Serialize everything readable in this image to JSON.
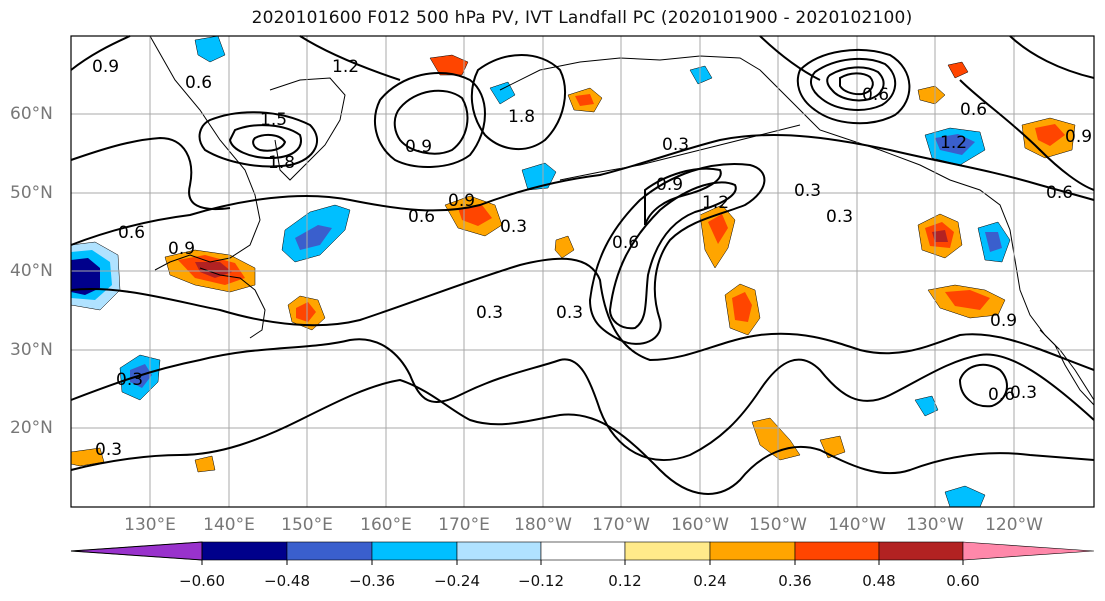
{
  "title": "2020101600 F012 500 hPa PV, IVT Landfall PC (2020101900 - 2020102100)",
  "latitude_labels": [
    "60°N",
    "50°N",
    "40°N",
    "30°N",
    "20°N"
  ],
  "longitude_labels": [
    "130°E",
    "140°E",
    "150°E",
    "160°E",
    "170°E",
    "180°W",
    "170°W",
    "160°W",
    "150°W",
    "140°W",
    "130°W",
    "120°W"
  ],
  "contour_labels": [
    "0.9",
    "0.6",
    "1.2",
    "1.5",
    "1.8",
    "0.9",
    "1.8",
    "0.3",
    "0.6",
    "0.9",
    "1.2",
    "0.3",
    "0.6",
    "0.9",
    "0.6",
    "0.9",
    "0.3",
    "0.6",
    "0.3",
    "0.3",
    "0.3",
    "0.6",
    "0.9",
    "1.2",
    "0.3",
    "0.6",
    "0.3",
    "0.9",
    "0.3",
    "0.6"
  ],
  "colorbar": {
    "tick_labels": [
      "−0.60",
      "−0.48",
      "−0.36",
      "−0.24",
      "−0.12",
      "0.12",
      "0.24",
      "0.36",
      "0.48",
      "0.60"
    ],
    "colors": [
      "#9932cc",
      "#00008b",
      "#3a5fcd",
      "#00bfff",
      "#b0e2ff",
      "#ffffff",
      "#ffea8a",
      "#ffa500",
      "#ff4500",
      "#b22222",
      "#ff88aa"
    ]
  },
  "fill_colors": {
    "neg_strong": "#00008b",
    "neg_mid": "#3a5fcd",
    "neg": "#00bfff",
    "neg_weak": "#b0e2ff",
    "pos_weak": "#ffea8a",
    "pos": "#ffa500",
    "pos_mid": "#ff4500",
    "pos_strong": "#b22222"
  }
}
